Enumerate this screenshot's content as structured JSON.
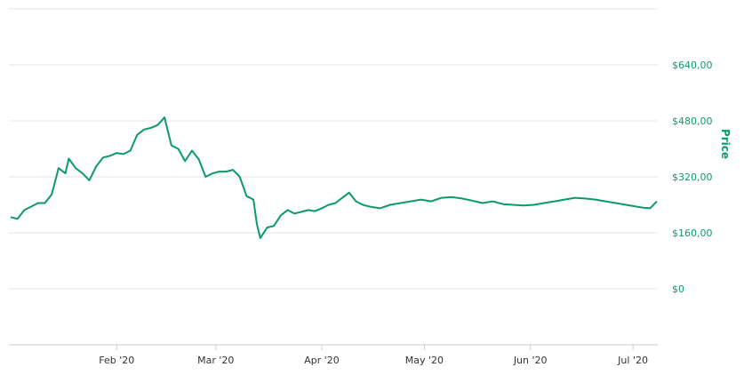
{
  "chart_data": {
    "type": "line",
    "title": "",
    "ylabel": "Price",
    "xlabel": "",
    "ylim": [
      -160,
      800
    ],
    "xlim": [
      "2020-01-01",
      "2020-07-08"
    ],
    "grid": true,
    "legend": "none",
    "y_ticks": [
      {
        "value": 640,
        "label": "$640,00"
      },
      {
        "value": 480,
        "label": "$480,00"
      },
      {
        "value": 320,
        "label": "$320,00"
      },
      {
        "value": 160,
        "label": "$160,00"
      },
      {
        "value": 0,
        "label": "$0"
      }
    ],
    "x_ticks": [
      {
        "date": "2020-02-01",
        "label": "Feb '20"
      },
      {
        "date": "2020-03-01",
        "label": "Mar '20"
      },
      {
        "date": "2020-04-01",
        "label": "Apr '20"
      },
      {
        "date": "2020-05-01",
        "label": "May '20"
      },
      {
        "date": "2020-06-01",
        "label": "Jun '20"
      },
      {
        "date": "2020-07-01",
        "label": "Jul '20"
      }
    ],
    "colors": {
      "line": "#0a9a6e",
      "axis_label": "#0a9a6e",
      "grid": "#e6e6e6"
    },
    "series": [
      {
        "x": [
          "2020-01-01",
          "2020-01-03",
          "2020-01-05",
          "2020-01-07",
          "2020-01-09",
          "2020-01-11",
          "2020-01-13",
          "2020-01-15",
          "2020-01-17",
          "2020-01-18",
          "2020-01-20",
          "2020-01-22",
          "2020-01-24",
          "2020-01-26",
          "2020-01-28",
          "2020-01-30",
          "2020-02-01",
          "2020-02-03",
          "2020-02-05",
          "2020-02-07",
          "2020-02-09",
          "2020-02-11",
          "2020-02-13",
          "2020-02-15",
          "2020-02-17",
          "2020-02-19",
          "2020-02-21",
          "2020-02-23",
          "2020-02-25",
          "2020-02-27",
          "2020-02-29",
          "2020-03-02",
          "2020-03-04",
          "2020-03-06",
          "2020-03-08",
          "2020-03-10",
          "2020-03-12",
          "2020-03-13",
          "2020-03-14",
          "2020-03-16",
          "2020-03-18",
          "2020-03-20",
          "2020-03-22",
          "2020-03-24",
          "2020-03-26",
          "2020-03-28",
          "2020-03-30",
          "2020-04-01",
          "2020-04-03",
          "2020-04-05",
          "2020-04-07",
          "2020-04-09",
          "2020-04-11",
          "2020-04-13",
          "2020-04-15",
          "2020-04-18",
          "2020-04-21",
          "2020-04-24",
          "2020-04-27",
          "2020-04-30",
          "2020-05-03",
          "2020-05-06",
          "2020-05-09",
          "2020-05-12",
          "2020-05-15",
          "2020-05-18",
          "2020-05-21",
          "2020-05-24",
          "2020-05-27",
          "2020-05-30",
          "2020-06-02",
          "2020-06-05",
          "2020-06-08",
          "2020-06-11",
          "2020-06-14",
          "2020-06-17",
          "2020-06-20",
          "2020-06-23",
          "2020-06-26",
          "2020-06-29",
          "2020-07-02",
          "2020-07-04",
          "2020-07-06",
          "2020-07-08"
        ],
        "y": [
          205,
          200,
          225,
          235,
          245,
          245,
          270,
          345,
          330,
          372,
          345,
          330,
          310,
          350,
          375,
          380,
          388,
          385,
          395,
          440,
          455,
          460,
          468,
          490,
          410,
          400,
          365,
          395,
          370,
          320,
          330,
          335,
          335,
          340,
          320,
          265,
          255,
          185,
          145,
          175,
          180,
          210,
          225,
          215,
          220,
          225,
          222,
          230,
          240,
          245,
          260,
          275,
          250,
          240,
          235,
          230,
          240,
          245,
          250,
          255,
          250,
          260,
          262,
          258,
          252,
          245,
          250,
          242,
          240,
          238,
          240,
          245,
          250,
          255,
          260,
          258,
          255,
          250,
          245,
          240,
          235,
          232,
          230,
          250
        ]
      }
    ]
  }
}
